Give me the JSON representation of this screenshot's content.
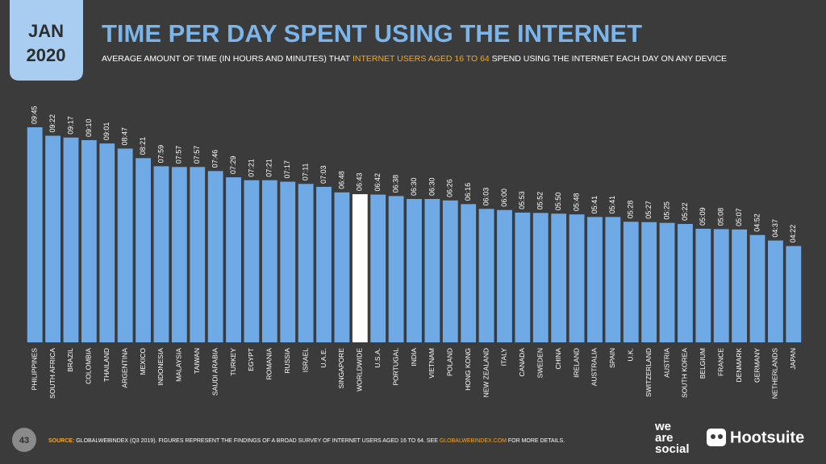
{
  "header": {
    "month": "JAN",
    "year": "2020"
  },
  "chart_data": {
    "type": "bar",
    "title": "TIME PER DAY SPENT USING THE INTERNET",
    "subtitle": [
      "AVERAGE AMOUNT OF TIME (IN HOURS AND MINUTES) THAT ",
      "INTERNET USERS AGED 16 TO 64",
      " SPEND USING THE INTERNET EACH DAY ON ANY DEVICE"
    ],
    "categories": [
      "PHILIPPINES",
      "SOUTH AFRICA",
      "BRAZIL",
      "COLOMBIA",
      "THAILAND",
      "ARGENTINA",
      "MEXICO",
      "INDONESIA",
      "MALAYSIA",
      "TAIWAN",
      "SAUDI ARABIA",
      "TURKEY",
      "EGYPT",
      "ROMANIA",
      "RUSSIA",
      "ISRAEL",
      "U.A.E.",
      "SINGAPORE",
      "WORLDWIDE",
      "U.S.A.",
      "PORTUGAL",
      "INDIA",
      "VIETNAM",
      "POLAND",
      "HONG KONG",
      "NEW ZEALAND",
      "ITALY",
      "CANADA",
      "SWEDEN",
      "CHINA",
      "IRELAND",
      "AUSTRALIA",
      "SPAIN",
      "U.K.",
      "SWITZERLAND",
      "AUSTRIA",
      "SOUTH KOREA",
      "BELGIUM",
      "FRANCE",
      "DENMARK",
      "GERMANY",
      "NETHERLANDS",
      "JAPAN"
    ],
    "values": [
      585,
      562,
      557,
      550,
      541,
      527,
      501,
      479,
      477,
      477,
      466,
      449,
      441,
      441,
      437,
      431,
      423,
      408,
      403,
      402,
      398,
      390,
      390,
      386,
      376,
      363,
      360,
      353,
      352,
      350,
      348,
      341,
      341,
      328,
      327,
      325,
      322,
      309,
      308,
      307,
      292,
      277,
      262
    ],
    "value_labels": [
      "09:45",
      "09:22",
      "09:17",
      "09:10",
      "09:01",
      "08:47",
      "08:21",
      "07:59",
      "07:57",
      "07:57",
      "07:46",
      "07:29",
      "07:21",
      "07:21",
      "07:17",
      "07:11",
      "07:03",
      "06:48",
      "06:43",
      "06:42",
      "06:38",
      "06:30",
      "06:30",
      "06:26",
      "06:16",
      "06:03",
      "06:00",
      "05:53",
      "05:52",
      "05:50",
      "05:48",
      "05:41",
      "05:41",
      "05:28",
      "05:27",
      "05:25",
      "05:22",
      "05:09",
      "05:08",
      "05:07",
      "04:52",
      "04:37",
      "04:22"
    ],
    "colors": [
      "#6fa9e6",
      "#6fa9e6",
      "#6fa9e6",
      "#6fa9e6",
      "#6fa9e6",
      "#6fa9e6",
      "#6fa9e6",
      "#6fa9e6",
      "#6fa9e6",
      "#6fa9e6",
      "#6fa9e6",
      "#6fa9e6",
      "#6fa9e6",
      "#6fa9e6",
      "#6fa9e6",
      "#6fa9e6",
      "#6fa9e6",
      "#6fa9e6",
      "#ffffff",
      "#6fa9e6",
      "#6fa9e6",
      "#6fa9e6",
      "#6fa9e6",
      "#6fa9e6",
      "#6fa9e6",
      "#6fa9e6",
      "#6fa9e6",
      "#6fa9e6",
      "#6fa9e6",
      "#6fa9e6",
      "#6fa9e6",
      "#6fa9e6",
      "#6fa9e6",
      "#6fa9e6",
      "#6fa9e6",
      "#6fa9e6",
      "#6fa9e6",
      "#6fa9e6",
      "#6fa9e6",
      "#6fa9e6",
      "#6fa9e6",
      "#6fa9e6",
      "#6fa9e6"
    ]
  },
  "footer": {
    "page": "43",
    "source_label": "SOURCE:",
    "source_text": " GLOBALWEBINDEX (Q3 2019). FIGURES REPRESENT THE FINDINGS OF A BROAD SURVEY OF INTERNET USERS AGED 16 TO 64. SEE ",
    "source_link": "GLOBALWEBINDEX.COM",
    "source_end": " FOR MORE DETAILS.",
    "logo_1": [
      "we",
      "are",
      "social"
    ],
    "logo_2": "Hootsuite"
  }
}
